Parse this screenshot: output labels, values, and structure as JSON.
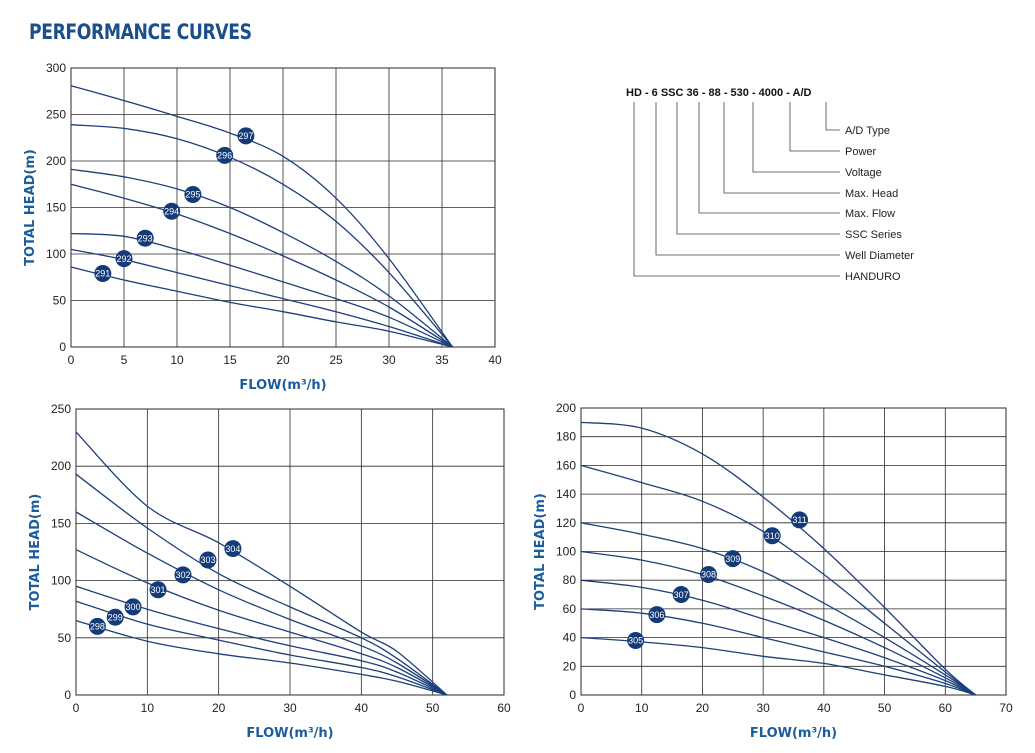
{
  "title": "PERFORMANCE CURVES",
  "colors": {
    "curve": "#1d3f7a",
    "marker": "#143a78",
    "axis_label": "#1b5d9c",
    "title": "#1b4f8c"
  },
  "model_code": {
    "title": "HD - 6 SSC 36 - 88 - 530 - 4000 - A/D",
    "labels": [
      "A/D Type",
      "Power",
      "Voltage",
      "Max. Head",
      "Max. Flow",
      "SSC Series",
      "Well Diameter",
      "HANDURO"
    ]
  },
  "chart_data": [
    {
      "type": "line",
      "xlabel": "FLOW(m³/h)",
      "ylabel": "TOTAL HEAD(m)",
      "xlim": [
        0,
        40
      ],
      "ylim": [
        0,
        300
      ],
      "xticks": [
        0,
        5,
        10,
        15,
        20,
        25,
        30,
        35,
        40
      ],
      "yticks": [
        0,
        50,
        100,
        150,
        200,
        250,
        300
      ],
      "grid": true,
      "series": [
        {
          "name": "291",
          "label_at": [
            3,
            79
          ],
          "points": [
            [
              0,
              86
            ],
            [
              5,
              72
            ],
            [
              10,
              60
            ],
            [
              15,
              48
            ],
            [
              20,
              38
            ],
            [
              25,
              27
            ],
            [
              30,
              17
            ],
            [
              36,
              0
            ]
          ]
        },
        {
          "name": "292",
          "label_at": [
            5,
            95
          ],
          "points": [
            [
              0,
              105
            ],
            [
              5,
              94
            ],
            [
              10,
              80
            ],
            [
              15,
              66
            ],
            [
              20,
              52
            ],
            [
              25,
              38
            ],
            [
              30,
              22
            ],
            [
              36,
              0
            ]
          ]
        },
        {
          "name": "293",
          "label_at": [
            7,
            117
          ],
          "points": [
            [
              0,
              122
            ],
            [
              5,
              119
            ],
            [
              10,
              105
            ],
            [
              15,
              88
            ],
            [
              20,
              70
            ],
            [
              25,
              52
            ],
            [
              30,
              32
            ],
            [
              36,
              0
            ]
          ]
        },
        {
          "name": "294",
          "label_at": [
            9.5,
            146
          ],
          "points": [
            [
              0,
              175
            ],
            [
              5,
              160
            ],
            [
              10,
              143
            ],
            [
              15,
              122
            ],
            [
              20,
              98
            ],
            [
              25,
              72
            ],
            [
              30,
              43
            ],
            [
              36,
              0
            ]
          ]
        },
        {
          "name": "295",
          "label_at": [
            11.5,
            164
          ],
          "points": [
            [
              0,
              191
            ],
            [
              5,
              183
            ],
            [
              10,
              170
            ],
            [
              15,
              150
            ],
            [
              20,
              123
            ],
            [
              25,
              92
            ],
            [
              30,
              55
            ],
            [
              36,
              0
            ]
          ]
        },
        {
          "name": "296",
          "label_at": [
            14.5,
            206
          ],
          "points": [
            [
              0,
              239
            ],
            [
              5,
              235
            ],
            [
              10,
              224
            ],
            [
              15,
              204
            ],
            [
              20,
              175
            ],
            [
              25,
              135
            ],
            [
              30,
              80
            ],
            [
              36,
              0
            ]
          ]
        },
        {
          "name": "297",
          "label_at": [
            16.5,
            227
          ],
          "points": [
            [
              0,
              281
            ],
            [
              5,
              265
            ],
            [
              10,
              248
            ],
            [
              15,
              230
            ],
            [
              20,
              205
            ],
            [
              25,
              160
            ],
            [
              30,
              95
            ],
            [
              36,
              0
            ]
          ]
        }
      ]
    },
    {
      "type": "line",
      "xlabel": "FLOW(m³/h)",
      "ylabel": "TOTAL HEAD(m)",
      "xlim": [
        0,
        60
      ],
      "ylim": [
        0,
        250
      ],
      "xticks": [
        0,
        10,
        20,
        30,
        40,
        50,
        60
      ],
      "yticks": [
        0,
        50,
        100,
        150,
        200,
        250
      ],
      "grid": true,
      "series": [
        {
          "name": "298",
          "label_at": [
            3,
            60
          ],
          "points": [
            [
              0,
              65
            ],
            [
              10,
              47
            ],
            [
              20,
              36
            ],
            [
              30,
              28
            ],
            [
              40,
              18
            ],
            [
              45,
              12
            ],
            [
              52,
              0
            ]
          ]
        },
        {
          "name": "299",
          "label_at": [
            5.5,
            68
          ],
          "points": [
            [
              0,
              82
            ],
            [
              10,
              62
            ],
            [
              20,
              48
            ],
            [
              30,
              35
            ],
            [
              40,
              24
            ],
            [
              45,
              16
            ],
            [
              52,
              0
            ]
          ]
        },
        {
          "name": "300",
          "label_at": [
            8,
            77
          ],
          "points": [
            [
              0,
              95
            ],
            [
              10,
              75
            ],
            [
              20,
              58
            ],
            [
              30,
              43
            ],
            [
              40,
              30
            ],
            [
              45,
              20
            ],
            [
              52,
              0
            ]
          ]
        },
        {
          "name": "301",
          "label_at": [
            11.5,
            92
          ],
          "points": [
            [
              0,
              127
            ],
            [
              10,
              98
            ],
            [
              20,
              74
            ],
            [
              30,
              55
            ],
            [
              40,
              36
            ],
            [
              45,
              24
            ],
            [
              52,
              0
            ]
          ]
        },
        {
          "name": "302",
          "label_at": [
            15,
            105
          ],
          "points": [
            [
              0,
              160
            ],
            [
              10,
              124
            ],
            [
              20,
              92
            ],
            [
              30,
              66
            ],
            [
              40,
              43
            ],
            [
              45,
              28
            ],
            [
              52,
              0
            ]
          ]
        },
        {
          "name": "303",
          "label_at": [
            18.5,
            118
          ],
          "points": [
            [
              0,
              193
            ],
            [
              10,
              146
            ],
            [
              20,
              106
            ],
            [
              30,
              77
            ],
            [
              40,
              50
            ],
            [
              45,
              32
            ],
            [
              52,
              0
            ]
          ]
        },
        {
          "name": "304",
          "label_at": [
            22,
            128
          ],
          "points": [
            [
              0,
              230
            ],
            [
              10,
              165
            ],
            [
              20,
              133
            ],
            [
              30,
              95
            ],
            [
              40,
              55
            ],
            [
              45,
              38
            ],
            [
              52,
              0
            ]
          ]
        }
      ]
    },
    {
      "type": "line",
      "xlabel": "FLOW(m³/h)",
      "ylabel": "TOTAL HEAD(m)",
      "xlim": [
        0,
        70
      ],
      "ylim": [
        0,
        200
      ],
      "xticks": [
        0,
        10,
        20,
        30,
        40,
        50,
        60,
        70
      ],
      "yticks": [
        0,
        20,
        40,
        60,
        80,
        100,
        120,
        140,
        160,
        180,
        200
      ],
      "grid": true,
      "series": [
        {
          "name": "305",
          "label_at": [
            9,
            38
          ],
          "points": [
            [
              0,
              40
            ],
            [
              10,
              37
            ],
            [
              20,
              33
            ],
            [
              30,
              27
            ],
            [
              40,
              22
            ],
            [
              50,
              14
            ],
            [
              60,
              6
            ],
            [
              65,
              0
            ]
          ]
        },
        {
          "name": "306",
          "label_at": [
            12.5,
            56
          ],
          "points": [
            [
              0,
              60
            ],
            [
              10,
              57
            ],
            [
              20,
              50
            ],
            [
              30,
              40
            ],
            [
              40,
              30
            ],
            [
              50,
              20
            ],
            [
              60,
              8
            ],
            [
              65,
              0
            ]
          ]
        },
        {
          "name": "307",
          "label_at": [
            16.5,
            70
          ],
          "points": [
            [
              0,
              80
            ],
            [
              10,
              75
            ],
            [
              20,
              66
            ],
            [
              30,
              53
            ],
            [
              40,
              40
            ],
            [
              50,
              26
            ],
            [
              60,
              10
            ],
            [
              65,
              0
            ]
          ]
        },
        {
          "name": "308",
          "label_at": [
            21,
            84
          ],
          "points": [
            [
              0,
              100
            ],
            [
              10,
              94
            ],
            [
              20,
              84
            ],
            [
              30,
              69
            ],
            [
              40,
              52
            ],
            [
              50,
              33
            ],
            [
              60,
              12
            ],
            [
              65,
              0
            ]
          ]
        },
        {
          "name": "309",
          "label_at": [
            25,
            95
          ],
          "points": [
            [
              0,
              120
            ],
            [
              10,
              112
            ],
            [
              20,
              102
            ],
            [
              30,
              86
            ],
            [
              40,
              64
            ],
            [
              50,
              40
            ],
            [
              60,
              14
            ],
            [
              65,
              0
            ]
          ]
        },
        {
          "name": "310",
          "label_at": [
            31.5,
            111
          ],
          "points": [
            [
              0,
              160
            ],
            [
              10,
              148
            ],
            [
              20,
              135
            ],
            [
              30,
              114
            ],
            [
              40,
              84
            ],
            [
              50,
              50
            ],
            [
              60,
              16
            ],
            [
              65,
              0
            ]
          ]
        },
        {
          "name": "311",
          "label_at": [
            36,
            122
          ],
          "points": [
            [
              0,
              190
            ],
            [
              10,
              186
            ],
            [
              20,
              168
            ],
            [
              30,
              138
            ],
            [
              40,
              102
            ],
            [
              50,
              61
            ],
            [
              60,
              18
            ],
            [
              65,
              0
            ]
          ]
        }
      ]
    }
  ]
}
